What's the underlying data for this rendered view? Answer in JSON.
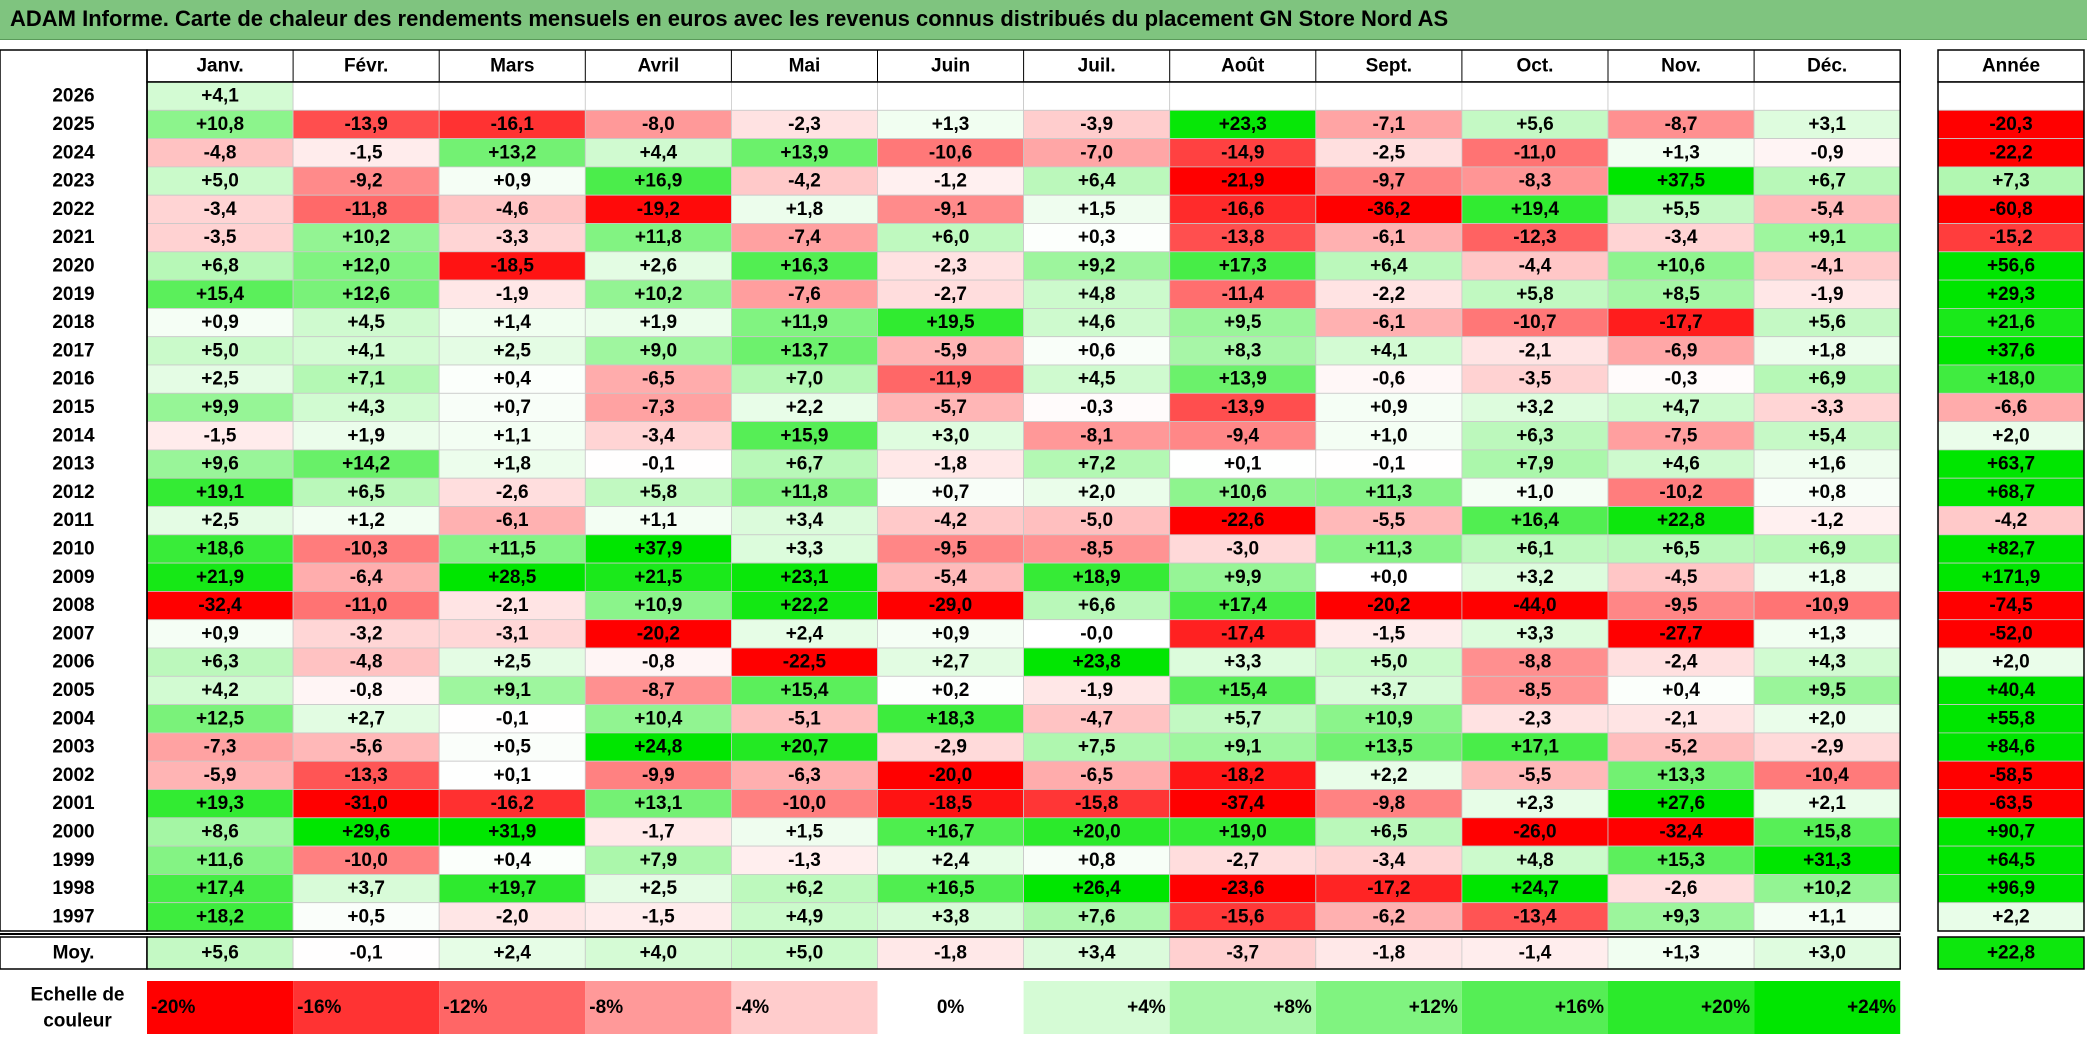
{
  "title": "ADAM Informe. Carte de chaleur des rendements mensuels en euros avec les revenus connus distribués du placement GN Store Nord AS",
  "chart_data": {
    "type": "heatmap",
    "months": [
      "Janv.",
      "Févr.",
      "Mars",
      "Avril",
      "Mai",
      "Juin",
      "Juil.",
      "Août",
      "Sept.",
      "Oct.",
      "Nov.",
      "Déc."
    ],
    "year_header": "Année",
    "rows": [
      {
        "year": "2026",
        "values": [
          "+4,1",
          null,
          null,
          null,
          null,
          null,
          null,
          null,
          null,
          null,
          null,
          null
        ],
        "annual": null
      },
      {
        "year": "2025",
        "values": [
          "+10,8",
          "-13,9",
          "-16,1",
          "-8,0",
          "-2,3",
          "+1,3",
          "-3,9",
          "+23,3",
          "-7,1",
          "+5,6",
          "-8,7",
          "+3,1"
        ],
        "annual": "-20,3"
      },
      {
        "year": "2024",
        "values": [
          "-4,8",
          "-1,5",
          "+13,2",
          "+4,4",
          "+13,9",
          "-10,6",
          "-7,0",
          "-14,9",
          "-2,5",
          "-11,0",
          "+1,3",
          "-0,9"
        ],
        "annual": "-22,2"
      },
      {
        "year": "2023",
        "values": [
          "+5,0",
          "-9,2",
          "+0,9",
          "+16,9",
          "-4,2",
          "-1,2",
          "+6,4",
          "-21,9",
          "-9,7",
          "-8,3",
          "+37,5",
          "+6,7"
        ],
        "annual": "+7,3"
      },
      {
        "year": "2022",
        "values": [
          "-3,4",
          "-11,8",
          "-4,6",
          "-19,2",
          "+1,8",
          "-9,1",
          "+1,5",
          "-16,6",
          "-36,2",
          "+19,4",
          "+5,5",
          "-5,4"
        ],
        "annual": "-60,8"
      },
      {
        "year": "2021",
        "values": [
          "-3,5",
          "+10,2",
          "-3,3",
          "+11,8",
          "-7,4",
          "+6,0",
          "+0,3",
          "-13,8",
          "-6,1",
          "-12,3",
          "-3,4",
          "+9,1"
        ],
        "annual": "-15,2"
      },
      {
        "year": "2020",
        "values": [
          "+6,8",
          "+12,0",
          "-18,5",
          "+2,6",
          "+16,3",
          "-2,3",
          "+9,2",
          "+17,3",
          "+6,4",
          "-4,4",
          "+10,6",
          "-4,1"
        ],
        "annual": "+56,6"
      },
      {
        "year": "2019",
        "values": [
          "+15,4",
          "+12,6",
          "-1,9",
          "+10,2",
          "-7,6",
          "-2,7",
          "+4,8",
          "-11,4",
          "-2,2",
          "+5,8",
          "+8,5",
          "-1,9"
        ],
        "annual": "+29,3"
      },
      {
        "year": "2018",
        "values": [
          "+0,9",
          "+4,5",
          "+1,4",
          "+1,9",
          "+11,9",
          "+19,5",
          "+4,6",
          "+9,5",
          "-6,1",
          "-10,7",
          "-17,7",
          "+5,6"
        ],
        "annual": "+21,6"
      },
      {
        "year": "2017",
        "values": [
          "+5,0",
          "+4,1",
          "+2,5",
          "+9,0",
          "+13,7",
          "-5,9",
          "+0,6",
          "+8,3",
          "+4,1",
          "-2,1",
          "-6,9",
          "+1,8"
        ],
        "annual": "+37,6"
      },
      {
        "year": "2016",
        "values": [
          "+2,5",
          "+7,1",
          "+0,4",
          "-6,5",
          "+7,0",
          "-11,9",
          "+4,5",
          "+13,9",
          "-0,6",
          "-3,5",
          "-0,3",
          "+6,9"
        ],
        "annual": "+18,0"
      },
      {
        "year": "2015",
        "values": [
          "+9,9",
          "+4,3",
          "+0,7",
          "-7,3",
          "+2,2",
          "-5,7",
          "-0,3",
          "-13,9",
          "+0,9",
          "+3,2",
          "+4,7",
          "-3,3"
        ],
        "annual": "-6,6"
      },
      {
        "year": "2014",
        "values": [
          "-1,5",
          "+1,9",
          "+1,1",
          "-3,4",
          "+15,9",
          "+3,0",
          "-8,1",
          "-9,4",
          "+1,0",
          "+6,3",
          "-7,5",
          "+5,4"
        ],
        "annual": "+2,0"
      },
      {
        "year": "2013",
        "values": [
          "+9,6",
          "+14,2",
          "+1,8",
          "-0,1",
          "+6,7",
          "-1,8",
          "+7,2",
          "+0,1",
          "-0,1",
          "+7,9",
          "+4,6",
          "+1,6"
        ],
        "annual": "+63,7"
      },
      {
        "year": "2012",
        "values": [
          "+19,1",
          "+6,5",
          "-2,6",
          "+5,8",
          "+11,8",
          "+0,7",
          "+2,0",
          "+10,6",
          "+11,3",
          "+1,0",
          "-10,2",
          "+0,8"
        ],
        "annual": "+68,7"
      },
      {
        "year": "2011",
        "values": [
          "+2,5",
          "+1,2",
          "-6,1",
          "+1,1",
          "+3,4",
          "-4,2",
          "-5,0",
          "-22,6",
          "-5,5",
          "+16,4",
          "+22,8",
          "-1,2"
        ],
        "annual": "-4,2"
      },
      {
        "year": "2010",
        "values": [
          "+18,6",
          "-10,3",
          "+11,5",
          "+37,9",
          "+3,3",
          "-9,5",
          "-8,5",
          "-3,0",
          "+11,3",
          "+6,1",
          "+6,5",
          "+6,9"
        ],
        "annual": "+82,7"
      },
      {
        "year": "2009",
        "values": [
          "+21,9",
          "-6,4",
          "+28,5",
          "+21,5",
          "+23,1",
          "-5,4",
          "+18,9",
          "+9,9",
          "+0,0",
          "+3,2",
          "-4,5",
          "+1,8"
        ],
        "annual": "+171,9"
      },
      {
        "year": "2008",
        "values": [
          "-32,4",
          "-11,0",
          "-2,1",
          "+10,9",
          "+22,2",
          "-29,0",
          "+6,6",
          "+17,4",
          "-20,2",
          "-44,0",
          "-9,5",
          "-10,9"
        ],
        "annual": "-74,5"
      },
      {
        "year": "2007",
        "values": [
          "+0,9",
          "-3,2",
          "-3,1",
          "-20,2",
          "+2,4",
          "+0,9",
          "-0,0",
          "-17,4",
          "-1,5",
          "+3,3",
          "-27,7",
          "+1,3"
        ],
        "annual": "-52,0"
      },
      {
        "year": "2006",
        "values": [
          "+6,3",
          "-4,8",
          "+2,5",
          "-0,8",
          "-22,5",
          "+2,7",
          "+23,8",
          "+3,3",
          "+5,0",
          "-8,8",
          "-2,4",
          "+4,3"
        ],
        "annual": "+2,0"
      },
      {
        "year": "2005",
        "values": [
          "+4,2",
          "-0,8",
          "+9,1",
          "-8,7",
          "+15,4",
          "+0,2",
          "-1,9",
          "+15,4",
          "+3,7",
          "-8,5",
          "+0,4",
          "+9,5"
        ],
        "annual": "+40,4"
      },
      {
        "year": "2004",
        "values": [
          "+12,5",
          "+2,7",
          "-0,1",
          "+10,4",
          "-5,1",
          "+18,3",
          "-4,7",
          "+5,7",
          "+10,9",
          "-2,3",
          "-2,1",
          "+2,0"
        ],
        "annual": "+55,8"
      },
      {
        "year": "2003",
        "values": [
          "-7,3",
          "-5,6",
          "+0,5",
          "+24,8",
          "+20,7",
          "-2,9",
          "+7,5",
          "+9,1",
          "+13,5",
          "+17,1",
          "-5,2",
          "-2,9"
        ],
        "annual": "+84,6"
      },
      {
        "year": "2002",
        "values": [
          "-5,9",
          "-13,3",
          "+0,1",
          "-9,9",
          "-6,3",
          "-20,0",
          "-6,5",
          "-18,2",
          "+2,2",
          "-5,5",
          "+13,3",
          "-10,4"
        ],
        "annual": "-58,5"
      },
      {
        "year": "2001",
        "values": [
          "+19,3",
          "-31,0",
          "-16,2",
          "+13,1",
          "-10,0",
          "-18,5",
          "-15,8",
          "-37,4",
          "-9,8",
          "+2,3",
          "+27,6",
          "+2,1"
        ],
        "annual": "-63,5"
      },
      {
        "year": "2000",
        "values": [
          "+8,6",
          "+29,6",
          "+31,9",
          "-1,7",
          "+1,5",
          "+16,7",
          "+20,0",
          "+19,0",
          "+6,5",
          "-26,0",
          "-32,4",
          "+15,8"
        ],
        "annual": "+90,7"
      },
      {
        "year": "1999",
        "values": [
          "+11,6",
          "-10,0",
          "+0,4",
          "+7,9",
          "-1,3",
          "+2,4",
          "+0,8",
          "-2,7",
          "-3,4",
          "+4,8",
          "+15,3",
          "+31,3"
        ],
        "annual": "+64,5"
      },
      {
        "year": "1998",
        "values": [
          "+17,4",
          "+3,7",
          "+19,7",
          "+2,5",
          "+6,2",
          "+16,5",
          "+26,4",
          "-23,6",
          "-17,2",
          "+24,7",
          "-2,6",
          "+10,2"
        ],
        "annual": "+96,9"
      },
      {
        "year": "1997",
        "values": [
          "+18,2",
          "+0,5",
          "-2,0",
          "-1,5",
          "+4,9",
          "+3,8",
          "+7,6",
          "-15,6",
          "-6,2",
          "-13,4",
          "+9,3",
          "+1,1"
        ],
        "annual": "+2,2"
      }
    ],
    "average_label": "Moy.",
    "averages": [
      "+5,6",
      "-0,1",
      "+2,4",
      "+4,0",
      "+5,0",
      "-1,8",
      "+3,4",
      "-3,7",
      "-1,8",
      "-1,4",
      "+1,3",
      "+3,0"
    ],
    "average_annual": "+22,8",
    "scale_label_line1": "Echelle de",
    "scale_label_line2": "couleur",
    "scale": [
      {
        "label": "-20%",
        "value": -20,
        "align": "left"
      },
      {
        "label": "-16%",
        "value": -16,
        "align": "left"
      },
      {
        "label": "-12%",
        "value": -12,
        "align": "left"
      },
      {
        "label": "-8%",
        "value": -8,
        "align": "left"
      },
      {
        "label": "-4%",
        "value": -4,
        "align": "left"
      },
      {
        "label": "0%",
        "value": 0,
        "align": "center"
      },
      {
        "label": "+4%",
        "value": 4,
        "align": "right"
      },
      {
        "label": "+8%",
        "value": 8,
        "align": "right"
      },
      {
        "label": "+12%",
        "value": 12,
        "align": "right"
      },
      {
        "label": "+16%",
        "value": 16,
        "align": "right"
      },
      {
        "label": "+20%",
        "value": 20,
        "align": "right"
      },
      {
        "label": "+24%",
        "value": 24,
        "align": "right"
      }
    ],
    "colors": {
      "max_red": "#ff0000",
      "max_green": "#00e600",
      "neutral": "#ffffff",
      "title_background": "#7fc47f"
    }
  }
}
